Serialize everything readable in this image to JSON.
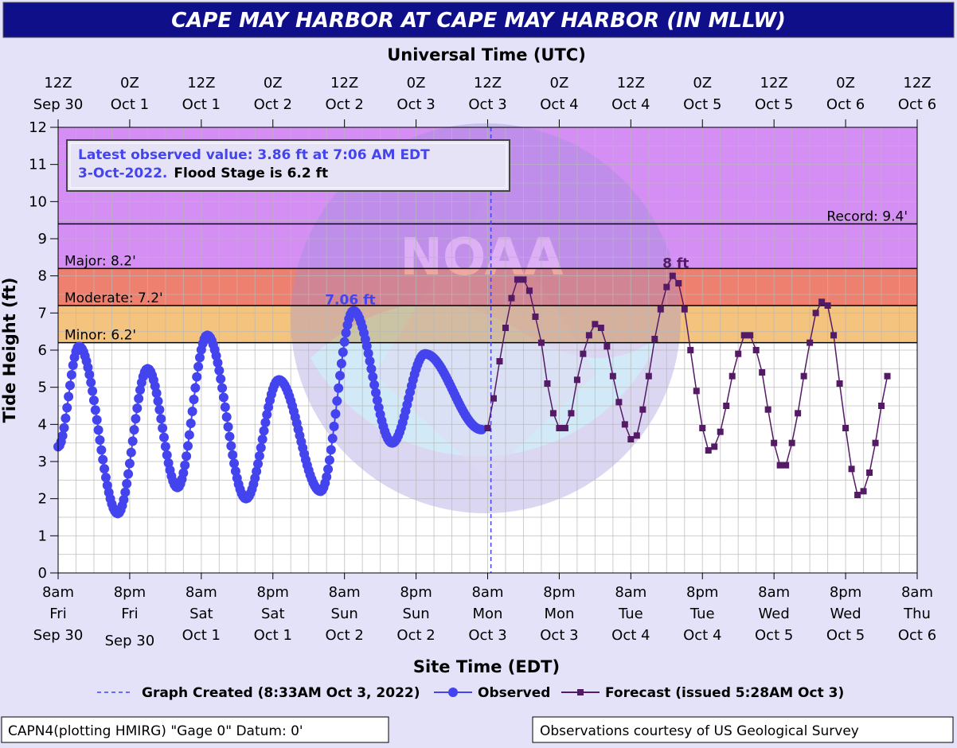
{
  "chart_data": {
    "type": "line",
    "title": "CAPE MAY HARBOR AT CAPE MAY HARBOR (IN MLLW)",
    "top_axis_label": "Universal Time (UTC)",
    "top_ticks": [
      {
        "l1": "12Z",
        "l2": "Sep 30"
      },
      {
        "l1": "0Z",
        "l2": "Oct  1"
      },
      {
        "l1": "12Z",
        "l2": "Oct  1"
      },
      {
        "l1": "0Z",
        "l2": "Oct  2"
      },
      {
        "l1": "12Z",
        "l2": "Oct  2"
      },
      {
        "l1": "0Z",
        "l2": "Oct  3"
      },
      {
        "l1": "12Z",
        "l2": "Oct  3"
      },
      {
        "l1": "0Z",
        "l2": "Oct  4"
      },
      {
        "l1": "12Z",
        "l2": "Oct  4"
      },
      {
        "l1": "0Z",
        "l2": "Oct  5"
      },
      {
        "l1": "12Z",
        "l2": "Oct  5"
      },
      {
        "l1": "0Z",
        "l2": "Oct  6"
      },
      {
        "l1": "12Z",
        "l2": "Oct  6"
      }
    ],
    "xlabel": "Site Time (EDT)",
    "bottom_ticks": [
      {
        "l1": "8am",
        "l2": "Fri",
        "l3": "Sep 30"
      },
      {
        "l1": "8pm",
        "l2": "Fri",
        "l3": "Sep 30"
      },
      {
        "l1": "8am",
        "l2": "Sat",
        "l3": "Oct 1"
      },
      {
        "l1": "8pm",
        "l2": "Sat",
        "l3": "Oct 1"
      },
      {
        "l1": "8am",
        "l2": "Sun",
        "l3": "Oct 2"
      },
      {
        "l1": "8pm",
        "l2": "Sun",
        "l3": "Oct 2"
      },
      {
        "l1": "8am",
        "l2": "Mon",
        "l3": "Oct 3"
      },
      {
        "l1": "8pm",
        "l2": "Mon",
        "l3": "Oct 3"
      },
      {
        "l1": "8am",
        "l2": "Tue",
        "l3": "Oct 4"
      },
      {
        "l1": "8pm",
        "l2": "Tue",
        "l3": "Oct 4"
      },
      {
        "l1": "8am",
        "l2": "Wed",
        "l3": "Oct 5"
      },
      {
        "l1": "8pm",
        "l2": "Wed",
        "l3": "Oct 5"
      },
      {
        "l1": "8am",
        "l2": "Thu",
        "l3": "Oct 6"
      }
    ],
    "ylabel": "Tide Height (ft)",
    "ylim": [
      0,
      12
    ],
    "yticks": [
      0,
      1,
      2,
      3,
      4,
      5,
      6,
      7,
      8,
      9,
      10,
      11,
      12
    ],
    "x_range_hours_since_start": [
      0,
      144
    ],
    "grid": true,
    "stages": [
      {
        "name": "Minor",
        "label": "Minor: 6.2'",
        "value": 6.2,
        "color": "#f4c47e"
      },
      {
        "name": "Moderate",
        "label": "Moderate: 7.2'",
        "value": 7.2,
        "color": "#ee8070"
      },
      {
        "name": "Major",
        "label": "Major: 8.2'",
        "value": 8.2,
        "color": "#d48ef4"
      }
    ],
    "record": {
      "label": "Record: 9.4'",
      "value": 9.4
    },
    "info_box": {
      "line1": "Latest observed value: 3.86 ft at 7:06 AM EDT",
      "line2_date": "3-Oct-2022.",
      "line2_rest": "Flood Stage is 6.2 ft"
    },
    "graph_created_hour": 72.55,
    "series": [
      {
        "name": "Observed",
        "color": "#4444ee",
        "peak_label": "7.06 ft",
        "points": [
          [
            0,
            3.4
          ],
          [
            3.5,
            6.1
          ],
          [
            10,
            1.6
          ],
          [
            15,
            5.5
          ],
          [
            20,
            2.3
          ],
          [
            25,
            6.4
          ],
          [
            31.5,
            2.0
          ],
          [
            37,
            5.2
          ],
          [
            44,
            2.2
          ],
          [
            49.5,
            7.06
          ],
          [
            56,
            3.5
          ],
          [
            61.5,
            5.9
          ],
          [
            71,
            3.86
          ]
        ]
      },
      {
        "name": "Forecast",
        "color": "#551a66",
        "peak_label": "8 ft",
        "points": [
          [
            72,
            3.9
          ],
          [
            73,
            4.7
          ],
          [
            74,
            5.7
          ],
          [
            75,
            6.6
          ],
          [
            76,
            7.4
          ],
          [
            77,
            7.9
          ],
          [
            78,
            7.9
          ],
          [
            79,
            7.6
          ],
          [
            80,
            6.9
          ],
          [
            81,
            6.2
          ],
          [
            82,
            5.1
          ],
          [
            83,
            4.3
          ],
          [
            84,
            3.9
          ],
          [
            85,
            3.9
          ],
          [
            86,
            4.3
          ],
          [
            87,
            5.2
          ],
          [
            88,
            5.9
          ],
          [
            89,
            6.4
          ],
          [
            90,
            6.7
          ],
          [
            91,
            6.6
          ],
          [
            92,
            6.1
          ],
          [
            93,
            5.3
          ],
          [
            94,
            4.6
          ],
          [
            95,
            4.0
          ],
          [
            96,
            3.6
          ],
          [
            97,
            3.7
          ],
          [
            98,
            4.4
          ],
          [
            99,
            5.3
          ],
          [
            100,
            6.3
          ],
          [
            101,
            7.1
          ],
          [
            102,
            7.7
          ],
          [
            103,
            8.0
          ],
          [
            104,
            7.8
          ],
          [
            105,
            7.1
          ],
          [
            106,
            6.0
          ],
          [
            107,
            4.9
          ],
          [
            108,
            3.9
          ],
          [
            109,
            3.3
          ],
          [
            110,
            3.4
          ],
          [
            111,
            3.8
          ],
          [
            112,
            4.5
          ],
          [
            113,
            5.3
          ],
          [
            114,
            5.9
          ],
          [
            115,
            6.4
          ],
          [
            116,
            6.4
          ],
          [
            117,
            6.0
          ],
          [
            118,
            5.4
          ],
          [
            119,
            4.4
          ],
          [
            120,
            3.5
          ],
          [
            121,
            2.9
          ],
          [
            122,
            2.9
          ],
          [
            123,
            3.5
          ],
          [
            124,
            4.3
          ],
          [
            125,
            5.3
          ],
          [
            126,
            6.2
          ],
          [
            127,
            7.0
          ],
          [
            128,
            7.3
          ],
          [
            129,
            7.2
          ],
          [
            130,
            6.4
          ],
          [
            131,
            5.1
          ],
          [
            132,
            3.9
          ],
          [
            133,
            2.8
          ],
          [
            134,
            2.1
          ],
          [
            135,
            2.2
          ],
          [
            136,
            2.7
          ],
          [
            137,
            3.5
          ],
          [
            138,
            4.5
          ],
          [
            139,
            5.3
          ]
        ]
      }
    ],
    "legend": {
      "graph_created": "Graph Created (8:33AM Oct 3, 2022)",
      "observed": "Observed",
      "forecast": "Forecast (issued 5:28AM Oct 3)"
    },
    "footer_left": "CAPN4(plotting HMIRG) \"Gage 0\" Datum: 0'",
    "footer_right": "Observations courtesy of US Geological Survey"
  }
}
